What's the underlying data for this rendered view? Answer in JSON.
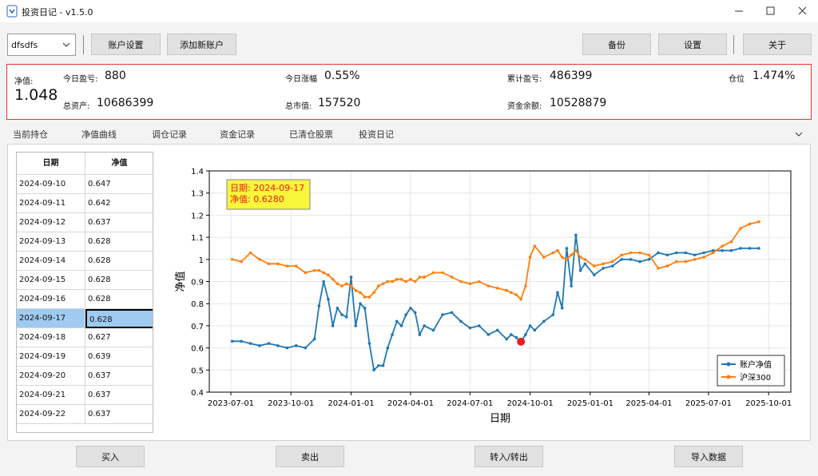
{
  "window": {
    "title": "投资日记 - v1.5.0"
  },
  "toolbar": {
    "account": "dfsdfs",
    "left_buttons": [
      "账户设置",
      "添加新账户"
    ],
    "right_buttons": [
      "备份",
      "设置",
      "关于"
    ]
  },
  "summary": {
    "nav_label": "净值:",
    "nav_value": "1.048",
    "fields": [
      {
        "label": "今日盈亏:",
        "value": "880"
      },
      {
        "label": "今日涨幅",
        "value": "0.55%"
      },
      {
        "label": "累计盈亏:",
        "value": "486399"
      },
      {
        "label": "仓位",
        "value": "1.474%"
      },
      {
        "label": "总资产:",
        "value": "10686399"
      },
      {
        "label": "总市值:",
        "value": "157520"
      },
      {
        "label": "资金余额:",
        "value": "10528879"
      }
    ]
  },
  "tabs": {
    "items": [
      "当前持仓",
      "净值曲线",
      "调仓记录",
      "资金记录",
      "已清仓股票",
      "投资日记"
    ],
    "active": 1
  },
  "table": {
    "headers": [
      "日期",
      "净值"
    ],
    "selected_row": 7,
    "rows": [
      [
        "2024-09-10",
        "0.647"
      ],
      [
        "2024-09-11",
        "0.642"
      ],
      [
        "2024-09-12",
        "0.637"
      ],
      [
        "2024-09-13",
        "0.628"
      ],
      [
        "2024-09-14",
        "0.628"
      ],
      [
        "2024-09-15",
        "0.628"
      ],
      [
        "2024-09-16",
        "0.628"
      ],
      [
        "2024-09-17",
        "0.628"
      ],
      [
        "2024-09-18",
        "0.627"
      ],
      [
        "2024-09-19",
        "0.639"
      ],
      [
        "2024-09-20",
        "0.637"
      ],
      [
        "2024-09-21",
        "0.637"
      ],
      [
        "2024-09-22",
        "0.637"
      ]
    ]
  },
  "chart_data": {
    "type": "line",
    "xlabel": "日期",
    "ylabel": "净值",
    "xlim": [
      "2023-05-29",
      "2025-11-04"
    ],
    "ylim": [
      0.4,
      1.4
    ],
    "xticks": [
      "2023-07-01",
      "2023-10-01",
      "2024-01-01",
      "2024-04-01",
      "2024-07-01",
      "2024-10-01",
      "2025-01-01",
      "2025-04-01",
      "2025-07-01",
      "2025-10-01"
    ],
    "yticks": [
      0.4,
      0.5,
      0.6,
      0.7,
      0.8,
      0.9,
      1,
      1.1,
      1.2,
      1.3,
      1.4
    ],
    "grid": true,
    "legend": "lower right",
    "x": [
      "2023-07-03",
      "2023-07-17",
      "2023-07-31",
      "2023-08-14",
      "2023-08-28",
      "2023-09-11",
      "2023-09-25",
      "2023-10-09",
      "2023-10-23",
      "2023-11-06",
      "2023-11-13",
      "2023-11-20",
      "2023-11-27",
      "2023-12-04",
      "2023-12-11",
      "2023-12-18",
      "2023-12-25",
      "2024-01-01",
      "2024-01-08",
      "2024-01-15",
      "2024-01-22",
      "2024-01-29",
      "2024-02-05",
      "2024-02-12",
      "2024-02-19",
      "2024-02-26",
      "2024-03-04",
      "2024-03-11",
      "2024-03-18",
      "2024-03-25",
      "2024-04-01",
      "2024-04-08",
      "2024-04-15",
      "2024-04-22",
      "2024-05-06",
      "2024-05-20",
      "2024-06-03",
      "2024-06-17",
      "2024-07-01",
      "2024-07-15",
      "2024-07-29",
      "2024-08-12",
      "2024-08-26",
      "2024-09-02",
      "2024-09-10",
      "2024-09-17",
      "2024-09-24",
      "2024-10-01",
      "2024-10-08",
      "2024-10-22",
      "2024-11-05",
      "2024-11-12",
      "2024-11-19",
      "2024-11-26",
      "2024-12-03",
      "2024-12-10",
      "2024-12-17",
      "2024-12-24",
      "2025-01-07",
      "2025-01-21",
      "2025-02-04",
      "2025-02-18",
      "2025-03-04",
      "2025-03-18",
      "2025-04-01",
      "2025-04-15",
      "2025-04-29",
      "2025-05-13",
      "2025-05-27",
      "2025-06-10",
      "2025-06-24",
      "2025-07-08",
      "2025-07-22",
      "2025-08-05",
      "2025-08-19",
      "2025-09-02",
      "2025-09-16"
    ],
    "series": [
      {
        "name": "账户净值",
        "color": "#1f77b4",
        "values": [
          0.63,
          0.63,
          0.62,
          0.61,
          0.62,
          0.61,
          0.6,
          0.61,
          0.6,
          0.64,
          0.79,
          0.9,
          0.82,
          0.7,
          0.78,
          0.75,
          0.74,
          0.92,
          0.7,
          0.8,
          0.78,
          0.62,
          0.5,
          0.52,
          0.52,
          0.6,
          0.66,
          0.72,
          0.7,
          0.75,
          0.78,
          0.76,
          0.66,
          0.7,
          0.68,
          0.75,
          0.76,
          0.72,
          0.69,
          0.7,
          0.66,
          0.68,
          0.64,
          0.66,
          0.647,
          0.628,
          0.66,
          0.7,
          0.68,
          0.72,
          0.75,
          0.85,
          0.78,
          1.05,
          0.88,
          1.11,
          0.95,
          0.98,
          0.93,
          0.96,
          0.97,
          1.0,
          1.0,
          0.99,
          1.0,
          1.03,
          1.02,
          1.03,
          1.03,
          1.02,
          1.03,
          1.04,
          1.04,
          1.04,
          1.05,
          1.05,
          1.05
        ]
      },
      {
        "name": "沪深300",
        "color": "#ff7f0e",
        "values": [
          1.0,
          0.99,
          1.03,
          1.0,
          0.98,
          0.98,
          0.97,
          0.97,
          0.94,
          0.95,
          0.95,
          0.94,
          0.93,
          0.91,
          0.89,
          0.88,
          0.89,
          0.88,
          0.86,
          0.85,
          0.83,
          0.83,
          0.85,
          0.88,
          0.89,
          0.9,
          0.9,
          0.91,
          0.91,
          0.9,
          0.91,
          0.9,
          0.92,
          0.92,
          0.94,
          0.94,
          0.92,
          0.9,
          0.89,
          0.9,
          0.88,
          0.87,
          0.86,
          0.85,
          0.84,
          0.82,
          0.88,
          1.01,
          1.06,
          1.01,
          1.03,
          1.04,
          1.01,
          1.0,
          1.02,
          1.04,
          1.01,
          1.0,
          0.97,
          0.98,
          0.99,
          1.02,
          1.03,
          1.03,
          1.02,
          0.96,
          0.97,
          0.99,
          0.99,
          1.0,
          1.01,
          1.03,
          1.06,
          1.08,
          1.14,
          1.16,
          1.17
        ]
      }
    ],
    "highlight": {
      "x": "2024-09-17",
      "value": 0.628,
      "color": "#e8201c"
    },
    "annotation": [
      "日期: 2024-09-17",
      "净值: 0.6280"
    ]
  },
  "bottom_buttons": [
    "买入",
    "卖出",
    "转入/转出",
    "导入数据"
  ]
}
